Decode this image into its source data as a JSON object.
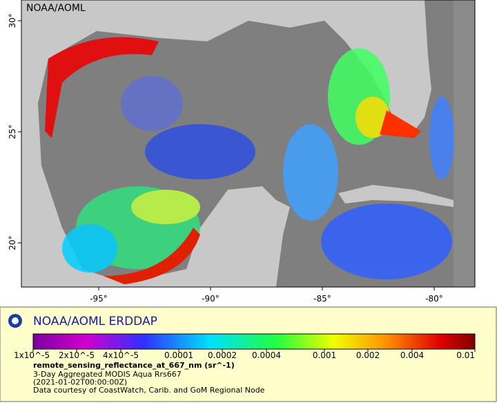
{
  "map": {
    "watermark": "NOAA/AOML",
    "lat_labels": [
      "30°",
      "25°",
      "20°"
    ],
    "lon_labels": [
      "-95°",
      "-90°",
      "-85°",
      "-80°"
    ]
  },
  "legend": {
    "title": "NOAA/AOML ERDDAP",
    "colorbar_ticks": [
      "1x10^-5",
      "2x10^-5",
      "4x10^-5",
      "0.0001",
      "0.0002",
      "0.0004",
      "0.001",
      "0.002",
      "0.004",
      "0.01"
    ],
    "variable": "remote_sensing_reflectance_at_667_nm (sr^-1)",
    "lines": [
      "3-Day Aggregated MODIS Aqua Rrs667",
      "(2021-01-02T00:00:00Z)",
      "Data courtesy of CoastWatch, Carib. and GoM Regional Node"
    ]
  }
}
